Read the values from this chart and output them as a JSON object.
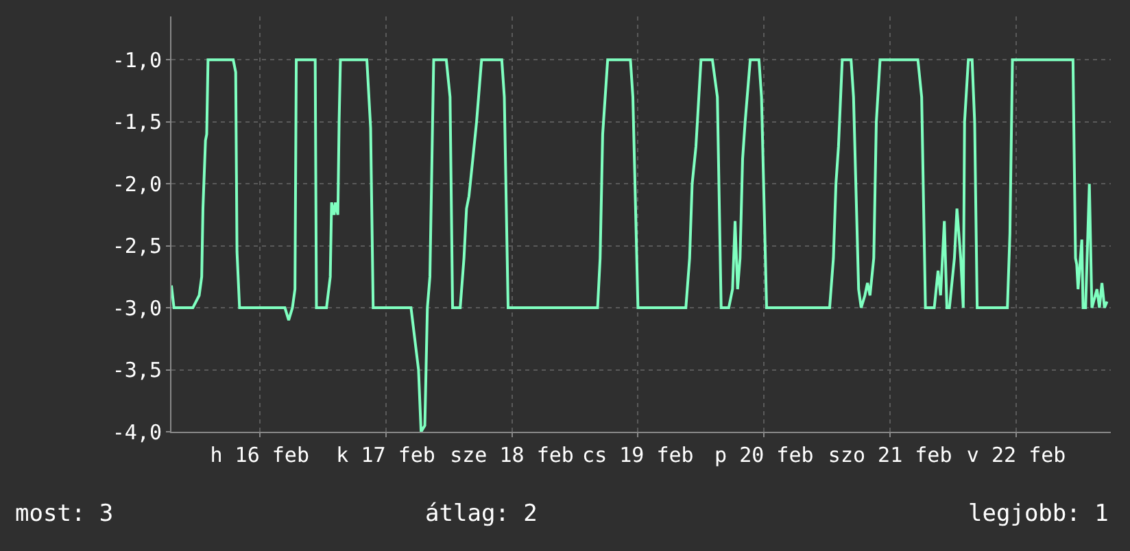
{
  "chart_data": {
    "type": "line",
    "x": [
      "--02-15T19:12",
      "--02-15T19:41",
      "--02-15T23:17",
      "--02-16T00:29",
      "--02-16T00:58",
      "--02-16T01:12",
      "--02-16T01:41",
      "--02-16T01:55",
      "--02-16T02:10",
      "--02-16T06:58",
      "--02-16T07:26",
      "--02-16T07:41",
      "--02-16T08:10",
      "--02-16T16:48",
      "--02-16T17:31",
      "--02-16T18:14",
      "--02-16T18:43",
      "--02-16T18:58",
      "--02-16T22:34",
      "--02-16T22:48",
      "--02-17T00:43",
      "--02-17T01:26",
      "--02-17T01:41",
      "--02-17T02:10",
      "--02-17T02:24",
      "--02-17T02:53",
      "--02-17T03:07",
      "--02-17T03:22",
      "--02-17T08:24",
      "--02-17T09:07",
      "--02-17T09:36",
      "--02-17T16:48",
      "--02-17T17:31",
      "--02-17T18:14",
      "--02-17T18:43",
      "--02-17T19:26",
      "--02-17T19:55",
      "--02-17T20:24",
      "--02-17T21:07",
      "--02-17T23:31",
      "--02-18T00:14",
      "--02-18T00:43",
      "--02-18T02:10",
      "--02-18T02:53",
      "--02-18T03:22",
      "--02-18T03:50",
      "--02-18T04:34",
      "--02-18T05:17",
      "--02-18T06:14",
      "--02-18T10:05",
      "--02-18T10:34",
      "--02-18T11:17",
      "--02-19T04:19",
      "--02-19T04:48",
      "--02-19T05:17",
      "--02-19T06:14",
      "--02-19T10:34",
      "--02-19T11:02",
      "--02-19T12:00",
      "--02-19T21:07",
      "--02-19T21:50",
      "--02-19T22:19",
      "--02-19T23:02",
      "--02-20T00:00",
      "--02-20T02:10",
      "--02-20T03:07",
      "--02-20T03:50",
      "--02-20T05:17",
      "--02-20T06:00",
      "--02-20T06:29",
      "--02-20T06:58",
      "--02-20T07:26",
      "--02-20T07:55",
      "--02-20T08:24",
      "--02-20T09:22",
      "--02-20T11:02",
      "--02-20T11:31",
      "--02-20T12:29",
      "--02-21T00:29",
      "--02-21T01:12",
      "--02-21T01:41",
      "--02-21T02:10",
      "--02-21T02:53",
      "--02-21T04:34",
      "--02-21T05:02",
      "--02-21T06:00",
      "--02-21T06:29",
      "--02-21T07:12",
      "--02-21T07:41",
      "--02-21T08:10",
      "--02-21T08:53",
      "--02-21T09:22",
      "--02-21T10:05",
      "--02-21T17:17",
      "--02-21T18:00",
      "--02-21T18:43",
      "--02-21T20:24",
      "--02-21T21:07",
      "--02-21T21:36",
      "--02-21T22:19",
      "--02-21T22:48",
      "--02-21T23:17",
      "--02-22T00:14",
      "--02-22T00:43",
      "--02-22T01:26",
      "--02-22T01:55",
      "--02-22T02:10",
      "--02-22T02:53",
      "--02-22T03:36",
      "--02-22T04:05",
      "--02-22T04:34",
      "--02-22T10:19",
      "--02-22T10:48",
      "--02-22T11:17",
      "--02-22T22:48",
      "--02-22T23:17",
      "--02-22T23:31",
      "--02-22T23:46",
      "--02-23T00:29",
      "--02-23T00:43",
      "--02-23T01:12",
      "--02-23T01:55",
      "--02-23T02:24",
      "--02-23T03:22",
      "--02-23T03:50",
      "--02-23T04:19",
      "--02-23T04:48",
      "--02-23T05:17"
    ],
    "series": [
      {
        "color": "#7fffc0",
        "values": [
          -2.82,
          -3.0,
          -3.0,
          -2.9,
          -2.75,
          -2.2,
          -1.65,
          -1.6,
          -1.0,
          -1.0,
          -1.1,
          -2.55,
          -3.0,
          -3.0,
          -3.1,
          -3.0,
          -2.85,
          -1.0,
          -1.0,
          -3.0,
          -3.0,
          -2.75,
          -2.15,
          -2.25,
          -2.15,
          -2.25,
          -1.5,
          -1.0,
          -1.0,
          -1.55,
          -3.0,
          -3.0,
          -3.25,
          -3.5,
          -4.0,
          -3.95,
          -3.0,
          -2.75,
          -1.0,
          -1.0,
          -1.3,
          -3.0,
          -3.0,
          -2.6,
          -2.2,
          -2.1,
          -1.8,
          -1.5,
          -1.0,
          -1.0,
          -1.3,
          -3.0,
          -3.0,
          -2.6,
          -1.6,
          -1.0,
          -1.0,
          -1.3,
          -3.0,
          -3.0,
          -2.6,
          -2.0,
          -1.7,
          -1.0,
          -1.0,
          -1.3,
          -3.0,
          -3.0,
          -2.85,
          -2.3,
          -2.85,
          -2.6,
          -1.8,
          -1.5,
          -1.0,
          -1.0,
          -1.3,
          -3.0,
          -3.0,
          -2.6,
          -2.0,
          -1.7,
          -1.0,
          -1.0,
          -1.3,
          -2.85,
          -3.0,
          -2.9,
          -2.8,
          -2.9,
          -2.6,
          -1.5,
          -1.0,
          -1.0,
          -1.3,
          -3.0,
          -3.0,
          -2.7,
          -2.9,
          -2.3,
          -3.0,
          -3.0,
          -2.6,
          -2.2,
          -2.6,
          -3.0,
          -1.5,
          -1.0,
          -1.0,
          -1.5,
          -3.0,
          -3.0,
          -2.4,
          -1.0,
          -1.0,
          -2.6,
          -2.65,
          -2.85,
          -2.45,
          -3.0,
          -3.0,
          -2.0,
          -3.0,
          -2.85,
          -3.0,
          -2.8,
          -3.0,
          -2.95
        ]
      }
    ],
    "xlim": [
      "--02-15T19:12",
      "--02-23T06:00"
    ],
    "xticks": [
      {
        "value": "--02-16T12:00",
        "label": "h 16 feb"
      },
      {
        "value": "--02-17T12:00",
        "label": "k 17 feb"
      },
      {
        "value": "--02-18T12:00",
        "label": "sze 18 feb"
      },
      {
        "value": "--02-19T12:00",
        "label": "cs 19 feb"
      },
      {
        "value": "--02-20T12:00",
        "label": "p 20 feb"
      },
      {
        "value": "--02-21T12:00",
        "label": "szo 21 feb"
      },
      {
        "value": "--02-22T12:00",
        "label": "v 22 feb"
      }
    ],
    "ylim": [
      -4.0,
      -0.65
    ],
    "yticks": [
      {
        "value": -1.0,
        "label": "-1,0"
      },
      {
        "value": -1.5,
        "label": "-1,5"
      },
      {
        "value": -2.0,
        "label": "-2,0"
      },
      {
        "value": -2.5,
        "label": "-2,5"
      },
      {
        "value": -3.0,
        "label": "-3,0"
      },
      {
        "value": -3.5,
        "label": "-3,5"
      },
      {
        "value": -4.0,
        "label": "-4,0"
      }
    ],
    "grid": true,
    "annotations": [
      "most: 3",
      "átlag: 2",
      "legjobb: 1"
    ]
  }
}
